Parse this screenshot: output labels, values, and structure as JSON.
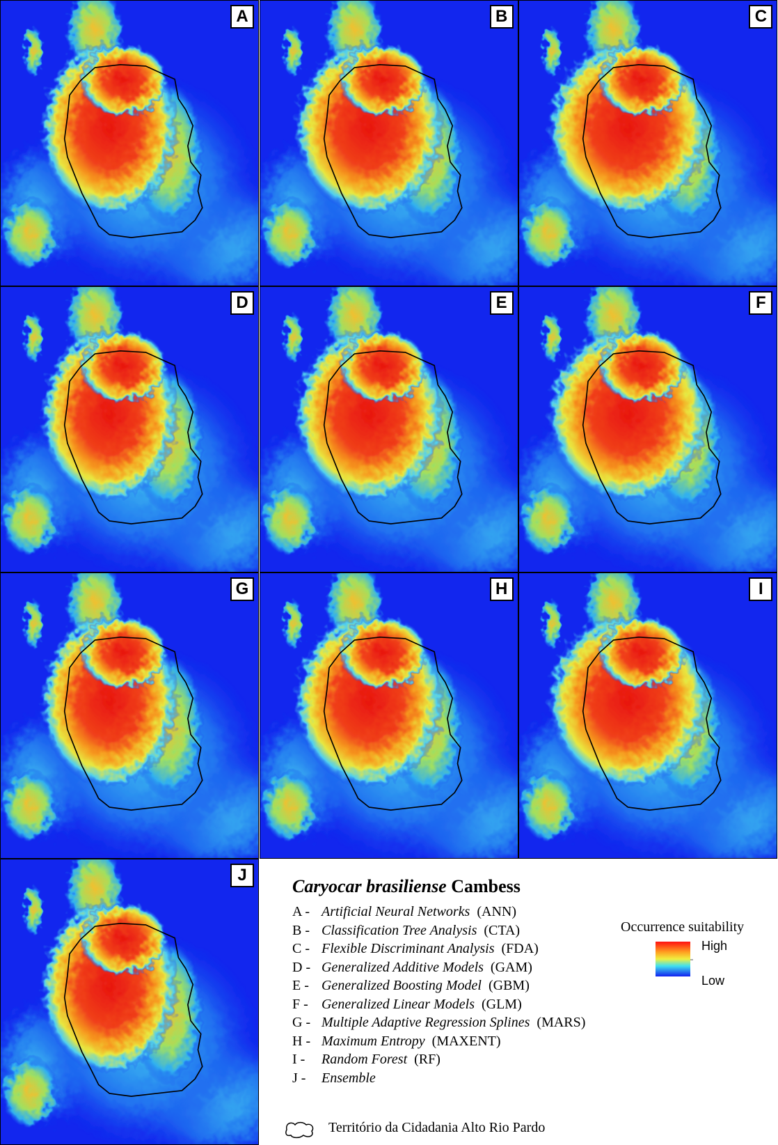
{
  "panels": [
    {
      "label": "A"
    },
    {
      "label": "B"
    },
    {
      "label": "C"
    },
    {
      "label": "D"
    },
    {
      "label": "E"
    },
    {
      "label": "F"
    },
    {
      "label": "G"
    },
    {
      "label": "H"
    },
    {
      "label": "I"
    },
    {
      "label": "J"
    }
  ],
  "legend": {
    "title": {
      "species": "Caryocar brasiliense",
      "author": "Cambess"
    },
    "items": [
      {
        "letter": "A -",
        "name": "Artificial Neural Networks",
        "abbr": "(ANN)"
      },
      {
        "letter": "B -",
        "name": "Classification Tree Analysis",
        "abbr": "(CTA)"
      },
      {
        "letter": "C -",
        "name": "Flexible Discriminant Analysis",
        "abbr": "(FDA)"
      },
      {
        "letter": "D -",
        "name": "Generalized Additive Models",
        "abbr": "(GAM)"
      },
      {
        "letter": "E -",
        "name": "Generalized Boosting Model",
        "abbr": "(GBM)"
      },
      {
        "letter": "F -",
        "name": "Generalized Linear Models",
        "abbr": "(GLM)"
      },
      {
        "letter": "G -",
        "name": "Multiple Adaptive Regression Splines",
        "abbr": "(MARS)"
      },
      {
        "letter": "H -",
        "name": "Maximum Entropy",
        "abbr": "(MAXENT)"
      },
      {
        "letter": "I -",
        "name": "Random Forest",
        "abbr": "(RF)"
      },
      {
        "letter": "J -",
        "name": "Ensemble"
      }
    ],
    "scale": {
      "title": "Occurrence suitability",
      "high": "High",
      "low": "Low"
    },
    "boundary": "Território da Cidadania Alto Rio Pardo"
  }
}
